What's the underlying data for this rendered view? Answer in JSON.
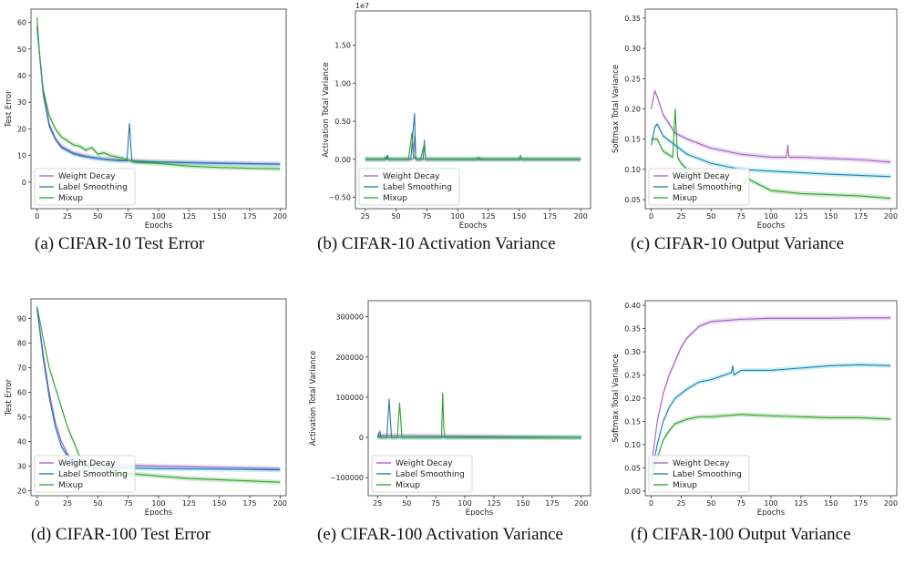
{
  "colors": {
    "weight_decay": "#a35bc4",
    "label_smoothing": "#1f77b4",
    "mixup": "#2ca02c",
    "ls_band": "#17becf"
  },
  "chart_data": [
    {
      "id": "a",
      "type": "line",
      "caption": "(a) CIFAR-10 Test Error",
      "xlabel": "Epochs",
      "ylabel": "Test Error",
      "xlim": [
        -5,
        205
      ],
      "ylim": [
        -10,
        65
      ],
      "xticks": [
        0,
        25,
        50,
        75,
        100,
        125,
        150,
        175,
        200
      ],
      "yticks": [
        0,
        10,
        20,
        30,
        40,
        50,
        60
      ],
      "legend": "lower-left",
      "series": [
        {
          "name": "Weight Decay",
          "x": [
            0,
            5,
            10,
            15,
            20,
            30,
            40,
            50,
            60,
            80,
            100,
            150,
            200
          ],
          "values": [
            59,
            34,
            22,
            16.5,
            13.5,
            11,
            9.8,
            9,
            8.5,
            8,
            7.6,
            7.2,
            6.8
          ]
        },
        {
          "name": "Label Smoothing",
          "x": [
            0,
            5,
            10,
            15,
            20,
            30,
            40,
            50,
            60,
            70,
            74,
            76,
            78,
            80,
            100,
            150,
            200
          ],
          "values": [
            58,
            33,
            21,
            16,
            13,
            10.5,
            9.5,
            8.8,
            8.3,
            8,
            8,
            22,
            8,
            7.8,
            7.5,
            7,
            6.7
          ]
        },
        {
          "name": "Mixup",
          "x": [
            0,
            2,
            5,
            10,
            15,
            20,
            25,
            30,
            35,
            40,
            45,
            50,
            55,
            60,
            70,
            80,
            100,
            125,
            150,
            175,
            200
          ],
          "values": [
            62,
            48,
            35,
            25,
            20,
            17,
            15.5,
            14,
            13.5,
            12,
            13,
            10.5,
            11,
            10,
            9,
            7.5,
            7,
            6,
            5.5,
            5.2,
            5
          ]
        }
      ]
    },
    {
      "id": "b",
      "type": "line",
      "caption": "(b) CIFAR-10 Activation Variance",
      "xlabel": "Epochs",
      "ylabel": "Activation Total Variance",
      "scale_label": "1e7",
      "xlim": [
        17,
        208
      ],
      "ylim": [
        -0.65,
        1.95
      ],
      "xticks": [
        25,
        50,
        75,
        100,
        125,
        150,
        175,
        200
      ],
      "yticks": [
        -0.5,
        0.0,
        0.5,
        1.0,
        1.5
      ],
      "legend": "lower-left",
      "series": [
        {
          "name": "Weight Decay",
          "x": [
            25,
            62,
            64,
            65,
            66,
            200
          ],
          "values": [
            0,
            0,
            0,
            0.3,
            0,
            0
          ]
        },
        {
          "name": "Label Smoothing",
          "x": [
            25,
            42,
            43,
            44,
            62,
            63,
            65,
            66,
            72,
            73,
            74,
            75,
            76,
            200
          ],
          "values": [
            0,
            0,
            0.05,
            0,
            0,
            0.2,
            0.6,
            0,
            0,
            0.25,
            0,
            0,
            0,
            0
          ]
        },
        {
          "name": "Mixup",
          "x": [
            25,
            40,
            42,
            44,
            60,
            63,
            64,
            66,
            70,
            73,
            74,
            76,
            80,
            115,
            117,
            119,
            150,
            151,
            152,
            200
          ],
          "values": [
            0,
            0,
            0.03,
            0,
            0,
            0.35,
            0.05,
            0,
            0,
            0.2,
            0,
            0,
            0,
            0,
            0.02,
            0,
            0,
            0.05,
            0,
            0
          ]
        }
      ]
    },
    {
      "id": "c",
      "type": "line",
      "caption": "(c) CIFAR-10 Output Variance",
      "xlabel": "Epochs",
      "ylabel": "Softmax Total Variance",
      "xlim": [
        -5,
        205
      ],
      "ylim": [
        0.035,
        0.365
      ],
      "xticks": [
        0,
        25,
        50,
        75,
        100,
        125,
        150,
        175,
        200
      ],
      "yticks": [
        0.05,
        0.1,
        0.15,
        0.2,
        0.25,
        0.3,
        0.35
      ],
      "legend": "lower-left",
      "series": [
        {
          "name": "Weight Decay",
          "x": [
            0,
            3,
            5,
            10,
            20,
            30,
            50,
            75,
            100,
            113,
            114,
            115,
            125,
            150,
            175,
            200
          ],
          "values": [
            0.2,
            0.23,
            0.22,
            0.19,
            0.16,
            0.15,
            0.135,
            0.125,
            0.12,
            0.12,
            0.14,
            0.12,
            0.12,
            0.118,
            0.116,
            0.112
          ]
        },
        {
          "name": "Label Smoothing",
          "x": [
            0,
            3,
            5,
            10,
            20,
            30,
            50,
            75,
            100,
            150,
            200
          ],
          "values": [
            0.14,
            0.17,
            0.175,
            0.155,
            0.14,
            0.125,
            0.11,
            0.1,
            0.097,
            0.092,
            0.088
          ]
        },
        {
          "name": "Mixup",
          "x": [
            0,
            5,
            10,
            18,
            20,
            22,
            25,
            30,
            50,
            60,
            75,
            80,
            100,
            125,
            150,
            175,
            200
          ],
          "values": [
            0.15,
            0.15,
            0.13,
            0.12,
            0.2,
            0.12,
            0.11,
            0.1,
            0.09,
            0.085,
            0.07,
            0.085,
            0.065,
            0.06,
            0.058,
            0.056,
            0.052
          ]
        }
      ]
    },
    {
      "id": "d",
      "type": "line",
      "caption": "(d) CIFAR-100 Test Error",
      "xlabel": "Epochs",
      "ylabel": "Test Error",
      "xlim": [
        -5,
        205
      ],
      "ylim": [
        18,
        98
      ],
      "xticks": [
        0,
        25,
        50,
        75,
        100,
        125,
        150,
        175,
        200
      ],
      "yticks": [
        20,
        30,
        40,
        50,
        60,
        70,
        80,
        90
      ],
      "legend": "lower-left",
      "series": [
        {
          "name": "Weight Decay",
          "x": [
            0,
            5,
            10,
            15,
            20,
            25,
            30,
            40,
            50,
            100,
            150,
            200
          ],
          "values": [
            94,
            76,
            60,
            48,
            40,
            35,
            32,
            31,
            30.5,
            30,
            29.5,
            29
          ]
        },
        {
          "name": "Label Smoothing",
          "x": [
            0,
            5,
            10,
            15,
            20,
            25,
            30,
            40,
            50,
            100,
            150,
            200
          ],
          "values": [
            94,
            74,
            58,
            46,
            38,
            34,
            31,
            30,
            29.5,
            29,
            28.8,
            28.5
          ]
        },
        {
          "name": "Mixup",
          "x": [
            0,
            5,
            10,
            15,
            20,
            25,
            30,
            35,
            40,
            50,
            75,
            100,
            125,
            150,
            175,
            200
          ],
          "values": [
            95,
            82,
            70,
            62,
            54,
            46,
            40,
            34,
            31,
            29,
            27,
            26,
            25,
            24.5,
            24,
            23.5
          ]
        }
      ]
    },
    {
      "id": "e",
      "type": "line",
      "caption": "(e) CIFAR-100 Activation Variance",
      "xlabel": "Epochs",
      "ylabel": "Activation Total Variance",
      "xlim": [
        17,
        208
      ],
      "ylim": [
        -145000,
        340000
      ],
      "xticks": [
        25,
        50,
        75,
        100,
        125,
        150,
        175,
        200
      ],
      "yticks": [
        -100000,
        0,
        100000,
        200000,
        300000
      ],
      "legend": "lower-left",
      "series": [
        {
          "name": "Weight Decay",
          "x": [
            25,
            26,
            27,
            28,
            200
          ],
          "values": [
            0,
            10000,
            0,
            5000,
            0
          ]
        },
        {
          "name": "Label Smoothing",
          "x": [
            25,
            27,
            28,
            33,
            35,
            37,
            200
          ],
          "values": [
            0,
            15000,
            0,
            0,
            95000,
            0,
            0
          ]
        },
        {
          "name": "Mixup",
          "x": [
            25,
            42,
            44,
            46,
            80,
            81,
            82,
            83,
            200
          ],
          "values": [
            0,
            0,
            85000,
            0,
            0,
            110000,
            20000,
            0,
            0
          ]
        }
      ]
    },
    {
      "id": "f",
      "type": "line",
      "caption": "(f) CIFAR-100 Output Variance",
      "xlabel": "Epochs",
      "ylabel": "Softmax Total Variance",
      "xlim": [
        -5,
        205
      ],
      "ylim": [
        -0.01,
        0.41
      ],
      "xticks": [
        0,
        25,
        50,
        75,
        100,
        125,
        150,
        175,
        200
      ],
      "yticks": [
        0.0,
        0.05,
        0.1,
        0.15,
        0.2,
        0.25,
        0.3,
        0.35,
        0.4
      ],
      "legend": "lower-left",
      "series": [
        {
          "name": "Weight Decay",
          "x": [
            0,
            5,
            10,
            15,
            20,
            25,
            30,
            40,
            50,
            75,
            100,
            125,
            150,
            175,
            200
          ],
          "values": [
            0.05,
            0.15,
            0.21,
            0.25,
            0.28,
            0.31,
            0.33,
            0.355,
            0.365,
            0.37,
            0.372,
            0.372,
            0.372,
            0.373,
            0.373
          ]
        },
        {
          "name": "Label Smoothing",
          "x": [
            0,
            5,
            10,
            15,
            20,
            25,
            30,
            40,
            50,
            67,
            68,
            69,
            75,
            100,
            125,
            150,
            175,
            200
          ],
          "values": [
            0.03,
            0.1,
            0.15,
            0.18,
            0.2,
            0.21,
            0.22,
            0.235,
            0.24,
            0.255,
            0.27,
            0.25,
            0.26,
            0.26,
            0.265,
            0.27,
            0.272,
            0.27
          ]
        },
        {
          "name": "Mixup",
          "x": [
            0,
            5,
            10,
            15,
            20,
            25,
            30,
            40,
            50,
            75,
            100,
            125,
            150,
            175,
            200
          ],
          "values": [
            0.02,
            0.07,
            0.11,
            0.13,
            0.145,
            0.15,
            0.155,
            0.16,
            0.16,
            0.165,
            0.162,
            0.16,
            0.158,
            0.158,
            0.155
          ]
        }
      ]
    }
  ]
}
